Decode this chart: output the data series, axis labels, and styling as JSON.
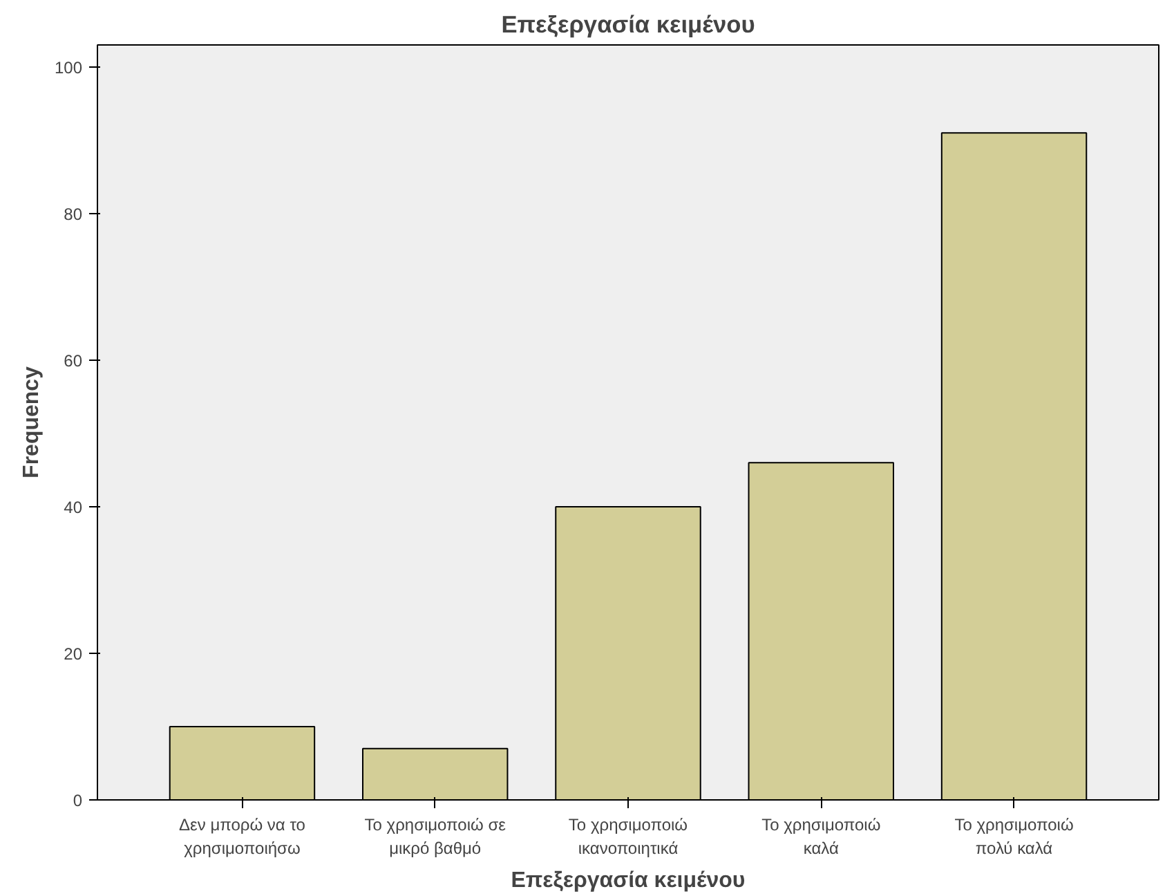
{
  "chart_data": {
    "type": "bar",
    "title": "Επεξεργασία κειμένου",
    "xlabel": "Επεξεργασία κειμένου",
    "ylabel": "Frequency",
    "categories": [
      "Δεν μπορώ να το χρησιμοποιήσω",
      "Το χρησιμοποιώ σε μικρό βαθμό",
      "Το χρησιμοποιώ ικανοποιητικά",
      "Το χρησιμοποιώ καλά",
      "Το χρησιμοποιώ πολύ καλά"
    ],
    "values": [
      10,
      7,
      40,
      46,
      91
    ],
    "color": "#d3ce97",
    "ylim": [
      0,
      103
    ],
    "yticks": [
      0,
      20,
      40,
      60,
      80,
      100
    ],
    "grid": false
  }
}
